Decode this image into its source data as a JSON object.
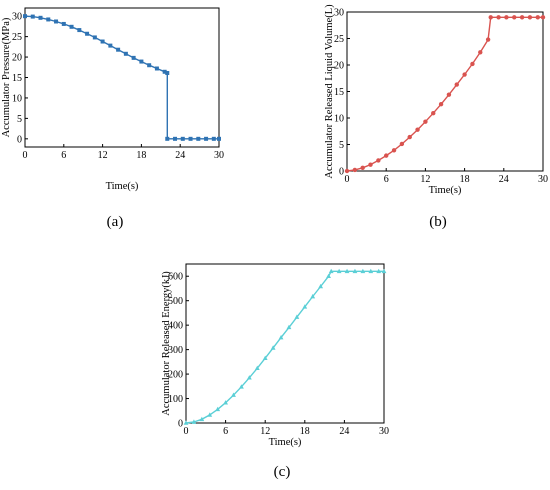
{
  "chart_data": [
    {
      "type": "line",
      "caption": "(a)",
      "xlabel": "Time(s)",
      "ylabel": "Accumulator Pressure(MPa)",
      "xlim": [
        0,
        30
      ],
      "ylim": [
        -2,
        32
      ],
      "xticks": [
        0,
        6,
        12,
        18,
        24,
        30
      ],
      "yticks": [
        0,
        5,
        10,
        15,
        20,
        25,
        30
      ],
      "color": "#2f73b3",
      "marker": "square",
      "series": [
        {
          "x": [
            0,
            1.2,
            2.4,
            3.6,
            4.8,
            6,
            7.2,
            8.4,
            9.6,
            10.8,
            12,
            13.2,
            14.4,
            15.6,
            16.8,
            18,
            19.2,
            20.4,
            21.6,
            22,
            22,
            23.2,
            24.4,
            25.6,
            26.8,
            28,
            29.2,
            30
          ],
          "y": [
            30,
            29.9,
            29.6,
            29.2,
            28.7,
            28.1,
            27.4,
            26.6,
            25.7,
            24.8,
            23.8,
            22.8,
            21.8,
            20.8,
            19.8,
            18.9,
            18.0,
            17.2,
            16.4,
            16.1,
            0,
            0,
            0,
            0,
            0,
            0,
            0,
            0
          ]
        }
      ]
    },
    {
      "type": "line",
      "caption": "(b)",
      "xlabel": "Time(s)",
      "ylabel": "Accumulator Released Liquid Volume(L)",
      "xlim": [
        0,
        30
      ],
      "ylim": [
        0,
        30
      ],
      "xticks": [
        0,
        6,
        12,
        18,
        24,
        30
      ],
      "yticks": [
        0,
        5,
        10,
        15,
        20,
        25,
        30
      ],
      "color": "#d9534f",
      "marker": "circle",
      "series": [
        {
          "x": [
            0,
            1.2,
            2.4,
            3.6,
            4.8,
            6,
            7.2,
            8.4,
            9.6,
            10.8,
            12,
            13.2,
            14.4,
            15.6,
            16.8,
            18,
            19.2,
            20.4,
            21.6,
            22,
            23.2,
            24.4,
            25.6,
            26.8,
            28,
            29.2,
            30
          ],
          "y": [
            0,
            0.2,
            0.6,
            1.2,
            2.0,
            2.9,
            3.9,
            5.1,
            6.4,
            7.8,
            9.3,
            10.9,
            12.6,
            14.4,
            16.3,
            18.2,
            20.2,
            22.4,
            24.8,
            29,
            29,
            29,
            29,
            29,
            29,
            29,
            29
          ]
        }
      ]
    },
    {
      "type": "line",
      "caption": "(c)",
      "xlabel": "Time(s)",
      "ylabel": "Accumulator Released Energy(kJ)",
      "xlim": [
        0,
        30
      ],
      "ylim": [
        0,
        650
      ],
      "xticks": [
        0,
        6,
        12,
        18,
        24,
        30
      ],
      "yticks": [
        0,
        100,
        200,
        300,
        400,
        500,
        600
      ],
      "color": "#5bcfd6",
      "marker": "triangle",
      "series": [
        {
          "x": [
            0,
            1.2,
            2.4,
            3.6,
            4.8,
            6,
            7.2,
            8.4,
            9.6,
            10.8,
            12,
            13.2,
            14.4,
            15.6,
            16.8,
            18,
            19.2,
            20.4,
            21.6,
            22,
            23.2,
            24.4,
            25.6,
            26.8,
            28,
            29.2,
            30
          ],
          "y": [
            0,
            4,
            15,
            33,
            56,
            83,
            114,
            148,
            185,
            224,
            265,
            307,
            349,
            391,
            433,
            475,
            517,
            558,
            600,
            620,
            620,
            620,
            620,
            620,
            620,
            620,
            620
          ]
        }
      ]
    }
  ]
}
